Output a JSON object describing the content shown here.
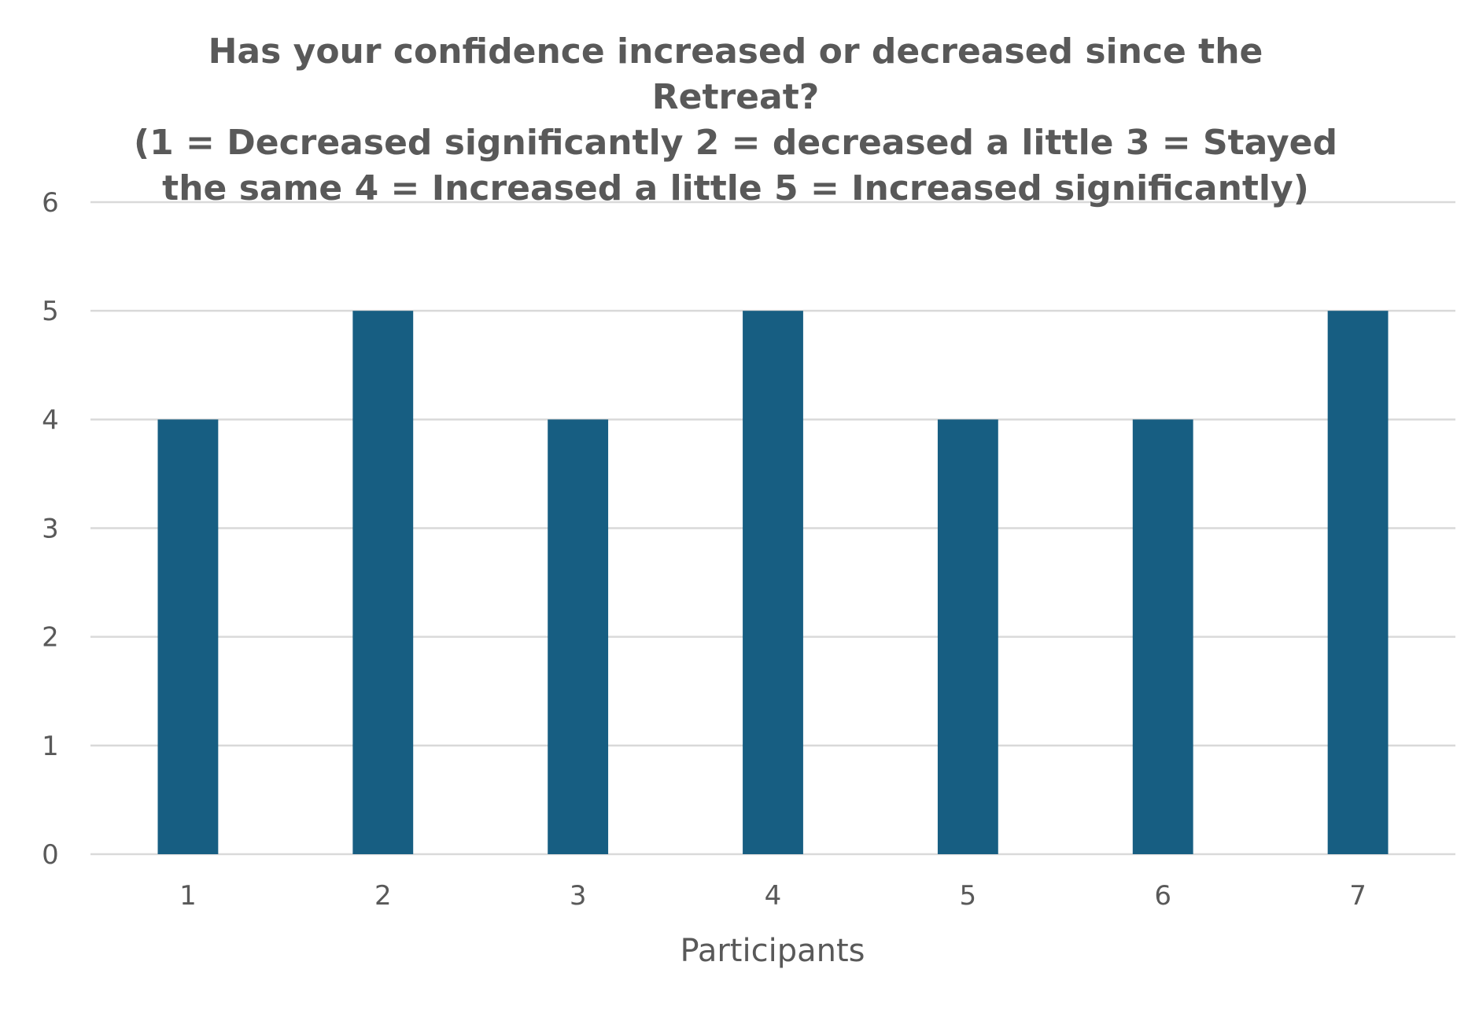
{
  "chart_data": {
    "type": "bar",
    "title_lines": [
      "Has your confidence increased or decreased since the",
      "Retreat?",
      "(1 = Decreased significantly 2 = decreased a little 3 = Stayed",
      "the same 4 = Increased a little 5 = Increased significantly)"
    ],
    "xlabel": "Participants",
    "ylabel": "",
    "categories": [
      "1",
      "2",
      "3",
      "4",
      "5",
      "6",
      "7"
    ],
    "values": [
      4,
      5,
      4,
      5,
      4,
      4,
      5
    ],
    "ylim": [
      0,
      6
    ],
    "yticks": [
      "0",
      "1",
      "2",
      "3",
      "4",
      "5",
      "6"
    ],
    "grid": true,
    "legend": "none",
    "bar_color": "#175e82"
  }
}
